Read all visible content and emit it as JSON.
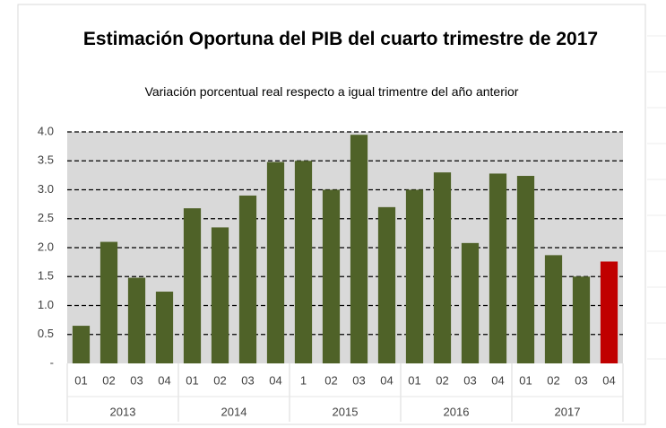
{
  "chart_data": {
    "type": "bar",
    "title": "Estimación Oportuna del PIB del cuarto trimestre de 2017",
    "subtitle": "Variación porcentual real respecto a igual trimentre del año anterior",
    "groups": [
      {
        "label": "2013",
        "categories": [
          "01",
          "02",
          "03",
          "04"
        ]
      },
      {
        "label": "2014",
        "categories": [
          "01",
          "02",
          "03",
          "04"
        ]
      },
      {
        "label": "2015",
        "categories": [
          "1",
          "02",
          "03",
          "04"
        ]
      },
      {
        "label": "2016",
        "categories": [
          "01",
          "02",
          "03",
          "04"
        ]
      },
      {
        "label": "2017",
        "categories": [
          "01",
          "02",
          "03",
          "04"
        ]
      }
    ],
    "values": [
      0.65,
      2.1,
      1.48,
      1.24,
      2.68,
      2.35,
      2.9,
      3.48,
      3.5,
      3.0,
      3.95,
      2.7,
      3.0,
      3.3,
      2.08,
      3.28,
      3.24,
      1.87,
      1.5,
      1.76
    ],
    "colors": [
      "#4f6228",
      "#4f6228",
      "#4f6228",
      "#4f6228",
      "#4f6228",
      "#4f6228",
      "#4f6228",
      "#4f6228",
      "#4f6228",
      "#4f6228",
      "#4f6228",
      "#4f6228",
      "#4f6228",
      "#4f6228",
      "#4f6228",
      "#4f6228",
      "#4f6228",
      "#4f6228",
      "#4f6228",
      "#c00000"
    ],
    "ylim": [
      0,
      4
    ],
    "yticks": [
      {
        "value": 0,
        "label": "-"
      },
      0.5,
      {
        "value": 1,
        "label": "1.0"
      },
      1.5,
      {
        "value": 2,
        "label": "2.0"
      },
      2.5,
      {
        "value": 3,
        "label": "3.0"
      },
      3.5,
      {
        "value": 4,
        "label": "4.0"
      }
    ],
    "grid": true
  }
}
